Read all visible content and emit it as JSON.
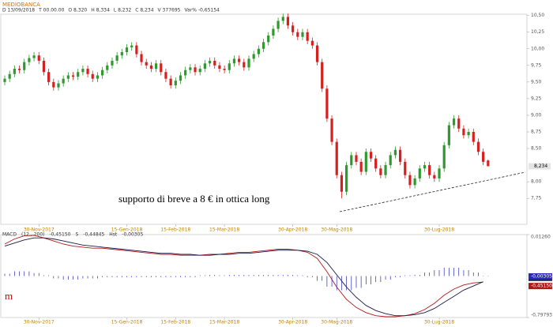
{
  "chart_data": [
    {
      "type": "candlestick",
      "title": "MEDIOBANCA",
      "info": [
        "D 13/09/2018",
        "T 00.00.00",
        "O 8,320",
        "H 8,334",
        "L 8,232",
        "C 8,234",
        "V 377695",
        "Var% -0,65154"
      ],
      "annotation": "supporto di breve a 8 € in ottica long",
      "last_value_label": "8,234",
      "up_color": "#2e9a2e",
      "down_color": "#d62020",
      "open": [
        9.5,
        9.55,
        9.62,
        9.7,
        9.68,
        9.8,
        9.86,
        9.9,
        9.82,
        9.65,
        9.5,
        9.42,
        9.48,
        9.55,
        9.6,
        9.58,
        9.65,
        9.7,
        9.62,
        9.55,
        9.6,
        9.68,
        9.75,
        9.82,
        9.9,
        9.95,
        10.02,
        10.05,
        9.92,
        9.8,
        9.75,
        9.7,
        9.78,
        9.65,
        9.55,
        9.45,
        9.52,
        9.6,
        9.68,
        9.72,
        9.65,
        9.7,
        9.78,
        9.82,
        9.75,
        9.7,
        9.68,
        9.78,
        9.85,
        9.8,
        9.72,
        9.85,
        9.92,
        10.0,
        10.1,
        10.2,
        10.3,
        10.42,
        10.48,
        10.35,
        10.25,
        10.18,
        10.25,
        10.12,
        10.05,
        9.8,
        9.4,
        8.95,
        8.6,
        8.1,
        7.85,
        8.25,
        8.4,
        8.3,
        8.15,
        8.45,
        8.35,
        8.2,
        8.1,
        8.25,
        8.4,
        8.48,
        8.3,
        8.1,
        7.95,
        8.05,
        8.2,
        8.25,
        8.1,
        8.05,
        8.2,
        8.55,
        8.85,
        8.95,
        8.8,
        8.7,
        8.75,
        8.6,
        8.45,
        8.32
      ],
      "high": [
        9.6,
        9.67,
        9.75,
        9.75,
        9.85,
        9.91,
        9.95,
        9.95,
        9.87,
        9.7,
        9.55,
        9.53,
        9.6,
        9.65,
        9.65,
        9.7,
        9.75,
        9.75,
        9.67,
        9.65,
        9.73,
        9.8,
        9.87,
        9.95,
        10.0,
        10.07,
        10.1,
        10.1,
        9.97,
        9.85,
        9.8,
        9.83,
        9.83,
        9.7,
        9.6,
        9.57,
        9.65,
        9.73,
        9.77,
        9.77,
        9.75,
        9.83,
        9.87,
        9.87,
        9.8,
        9.75,
        9.83,
        9.9,
        9.9,
        9.85,
        9.9,
        9.97,
        10.05,
        10.15,
        10.25,
        10.35,
        10.47,
        10.53,
        10.53,
        10.4,
        10.3,
        10.3,
        10.3,
        10.17,
        10.1,
        9.85,
        9.45,
        9.0,
        8.65,
        8.15,
        8.3,
        8.45,
        8.45,
        8.35,
        8.5,
        8.5,
        8.4,
        8.25,
        8.3,
        8.45,
        8.53,
        8.53,
        8.35,
        8.15,
        8.1,
        8.25,
        8.3,
        8.3,
        8.15,
        8.25,
        8.6,
        8.9,
        9.0,
        9.0,
        8.85,
        8.8,
        8.8,
        8.65,
        8.5,
        8.334
      ],
      "low": [
        9.45,
        9.5,
        9.57,
        9.63,
        9.63,
        9.75,
        9.81,
        9.77,
        9.6,
        9.45,
        9.37,
        9.37,
        9.43,
        9.5,
        9.53,
        9.53,
        9.6,
        9.57,
        9.5,
        9.5,
        9.55,
        9.63,
        9.7,
        9.77,
        9.85,
        9.9,
        9.97,
        9.87,
        9.75,
        9.7,
        9.65,
        9.65,
        9.6,
        9.5,
        9.4,
        9.4,
        9.47,
        9.55,
        9.63,
        9.6,
        9.6,
        9.65,
        9.73,
        9.7,
        9.65,
        9.63,
        9.63,
        9.73,
        9.75,
        9.67,
        9.67,
        9.8,
        9.87,
        9.95,
        10.05,
        10.15,
        10.25,
        10.37,
        10.3,
        10.2,
        10.13,
        10.13,
        10.07,
        10.0,
        9.75,
        9.35,
        8.9,
        8.55,
        8.05,
        7.75,
        7.8,
        8.2,
        8.25,
        8.1,
        8.1,
        8.3,
        8.15,
        8.05,
        8.05,
        8.2,
        8.35,
        8.25,
        8.05,
        7.9,
        7.9,
        8.0,
        8.15,
        8.05,
        8.0,
        8.0,
        8.15,
        8.5,
        8.8,
        8.75,
        8.65,
        8.65,
        8.55,
        8.4,
        8.25,
        8.232
      ],
      "close": [
        9.55,
        9.62,
        9.7,
        9.68,
        9.8,
        9.86,
        9.9,
        9.82,
        9.65,
        9.5,
        9.42,
        9.48,
        9.55,
        9.6,
        9.58,
        9.65,
        9.7,
        9.62,
        9.55,
        9.6,
        9.68,
        9.75,
        9.82,
        9.9,
        9.95,
        10.02,
        10.05,
        9.92,
        9.8,
        9.75,
        9.7,
        9.78,
        9.65,
        9.55,
        9.45,
        9.52,
        9.6,
        9.68,
        9.72,
        9.65,
        9.7,
        9.78,
        9.82,
        9.75,
        9.7,
        9.68,
        9.78,
        9.85,
        9.8,
        9.72,
        9.85,
        9.92,
        10.0,
        10.1,
        10.2,
        10.3,
        10.42,
        10.48,
        10.35,
        10.25,
        10.18,
        10.25,
        10.12,
        10.05,
        9.8,
        9.4,
        8.95,
        8.6,
        8.1,
        7.85,
        8.25,
        8.4,
        8.3,
        8.15,
        8.45,
        8.35,
        8.2,
        8.1,
        8.25,
        8.4,
        8.48,
        8.3,
        8.1,
        7.95,
        8.05,
        8.2,
        8.25,
        8.1,
        8.05,
        8.2,
        8.55,
        8.85,
        8.95,
        8.8,
        8.7,
        8.75,
        8.6,
        8.45,
        8.3,
        8.234
      ],
      "ylim": [
        7.36,
        10.52
      ],
      "yticks": [
        {
          "value": 10.5,
          "label": "10,50"
        },
        {
          "value": 10.25,
          "label": "10,25"
        },
        {
          "value": 10,
          "label": "10,00"
        },
        {
          "value": 9.75,
          "label": "9,75"
        },
        {
          "value": 9.5,
          "label": "9,50"
        },
        {
          "value": 9.25,
          "label": "9,25"
        },
        {
          "value": 9,
          "label": "9,00"
        },
        {
          "value": 8.75,
          "label": "8,75"
        },
        {
          "value": 8.5,
          "label": "8,50"
        },
        {
          "value": 8,
          "label": "8,00"
        },
        {
          "value": 7.75,
          "label": "7,75"
        }
      ],
      "xticks": [
        {
          "value": 7,
          "label": "30-Nov-2017"
        },
        {
          "value": 25,
          "label": "15-Gen-2018"
        },
        {
          "value": 35,
          "label": "15-Feb-2018"
        },
        {
          "value": 45,
          "label": "15-Mar-2018"
        },
        {
          "value": 59,
          "label": "30-Apr-2018"
        },
        {
          "value": 68,
          "label": "30-Mag-2018"
        },
        {
          "value": 89,
          "label": "30-Lug-2018"
        }
      ]
    },
    {
      "type": "macd",
      "params": "(12 , 200)",
      "fragment": "m",
      "series": [
        {
          "name": "MACD",
          "color": "#b01818",
          "last_label": "-0,45150",
          "values": [
            -0.08,
            -0.03,
            0.0,
            0.005,
            -0.02,
            -0.05,
            -0.08,
            -0.1,
            -0.11,
            -0.12,
            -0.12,
            -0.13,
            -0.14,
            -0.15,
            -0.16,
            -0.17,
            -0.18,
            -0.18,
            -0.19,
            -0.19,
            -0.19,
            -0.18,
            -0.18,
            -0.17,
            -0.16,
            -0.16,
            -0.15,
            -0.14,
            -0.13,
            -0.13,
            -0.14,
            -0.16,
            -0.22,
            -0.35,
            -0.5,
            -0.62,
            -0.7,
            -0.75,
            -0.78,
            -0.79,
            -0.79,
            -0.78,
            -0.76,
            -0.72,
            -0.66,
            -0.58,
            -0.52,
            -0.48,
            -0.46,
            -0.4515
          ]
        },
        {
          "name": "S",
          "color": "#1a1a4a",
          "last_label": "-0,44845",
          "values": [
            -0.1,
            -0.07,
            -0.04,
            -0.02,
            -0.02,
            -0.03,
            -0.05,
            -0.07,
            -0.09,
            -0.1,
            -0.11,
            -0.12,
            -0.13,
            -0.14,
            -0.15,
            -0.16,
            -0.17,
            -0.17,
            -0.18,
            -0.18,
            -0.19,
            -0.19,
            -0.18,
            -0.18,
            -0.17,
            -0.17,
            -0.16,
            -0.15,
            -0.14,
            -0.14,
            -0.14,
            -0.15,
            -0.18,
            -0.26,
            -0.38,
            -0.5,
            -0.6,
            -0.68,
            -0.73,
            -0.76,
            -0.78,
            -0.78,
            -0.77,
            -0.75,
            -0.71,
            -0.65,
            -0.59,
            -0.53,
            -0.49,
            -0.44845
          ]
        },
        {
          "name": "Hst",
          "color": "#2a2ab8",
          "axis": "y2",
          "last_label": "-0,00305",
          "values": [
            0.02,
            0.04,
            0.04,
            0.025,
            0.0,
            -0.02,
            -0.03,
            -0.03,
            -0.02,
            -0.02,
            -0.01,
            -0.01,
            -0.01,
            -0.01,
            -0.01,
            -0.01,
            -0.01,
            -0.01,
            -0.01,
            -0.01,
            0.0,
            0.01,
            0.0,
            0.01,
            0.01,
            0.01,
            0.01,
            0.01,
            0.01,
            0.01,
            0.0,
            -0.01,
            -0.04,
            -0.09,
            -0.12,
            -0.12,
            -0.1,
            -0.07,
            -0.05,
            -0.03,
            -0.01,
            0.0,
            0.01,
            0.03,
            0.05,
            0.07,
            0.07,
            0.05,
            0.03,
            -0.00305
          ]
        }
      ],
      "ylim": [
        -0.79793,
        0.0126
      ],
      "yticks": [
        {
          "value": 0.0126,
          "label": "0,01260"
        },
        {
          "value": -0.79793,
          "label": "-0,79793"
        }
      ],
      "y2lim": [
        -0.35,
        0.35
      ],
      "xticks": [
        {
          "value": 7,
          "label": "30-Nov-2017"
        },
        {
          "value": 25,
          "label": "15-Gen-2018"
        },
        {
          "value": 35,
          "label": "15-Feb-2018"
        },
        {
          "value": 45,
          "label": "15-Mar-2018"
        },
        {
          "value": 59,
          "label": "30-Apr-2018"
        },
        {
          "value": 68,
          "label": "30-Mag-2018"
        },
        {
          "value": 89,
          "label": "30-Lug-2018"
        }
      ]
    }
  ]
}
